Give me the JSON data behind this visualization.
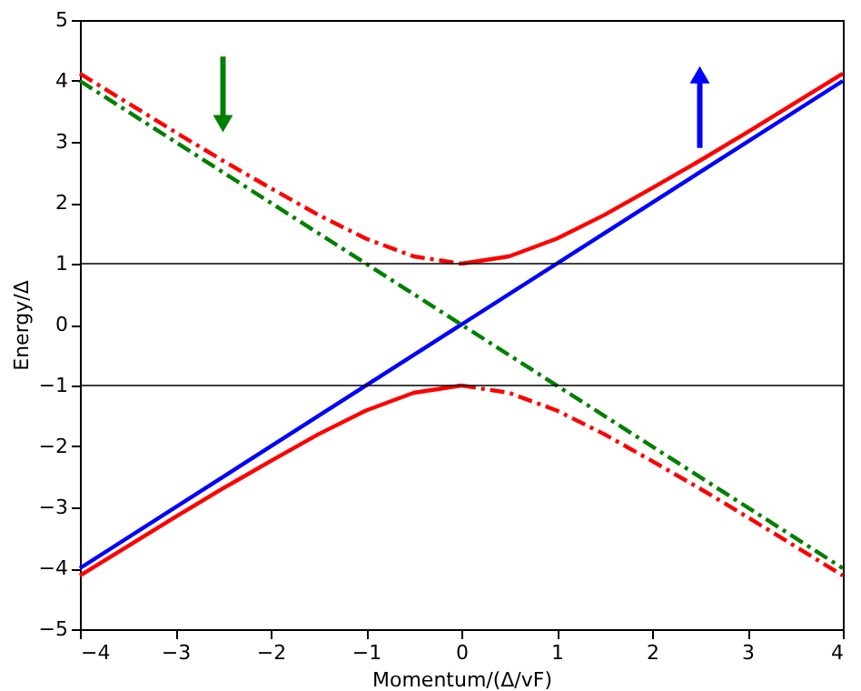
{
  "chart_data": {
    "type": "line",
    "xlabel": "Momentum/(Δ/vF)",
    "ylabel": "Energy/Δ",
    "xlim": [
      -4,
      4
    ],
    "ylim": [
      -5,
      5
    ],
    "xticks": [
      -4,
      -3,
      -2,
      -1,
      0,
      1,
      2,
      3,
      4
    ],
    "yticks": [
      -5,
      -4,
      -3,
      -2,
      -1,
      0,
      1,
      2,
      3,
      4,
      5
    ],
    "grid": false,
    "marker": "none",
    "ref_lines": [
      {
        "axis": "y",
        "value": 1,
        "color": "#000000"
      },
      {
        "axis": "y",
        "value": -1,
        "color": "#000000"
      }
    ],
    "series": [
      {
        "color": "#0000ff",
        "line_style": "solid",
        "x": [
          -4,
          4
        ],
        "values": [
          -4,
          4
        ]
      },
      {
        "color": "#008000",
        "line_style": "dashed",
        "x": [
          -4,
          4
        ],
        "values": [
          4,
          -4
        ]
      },
      {
        "color": "#ff0000",
        "line_style": "dashed",
        "x": [
          -4,
          -3.5,
          -3,
          -2.5,
          -2,
          -1.5,
          -1,
          -0.5,
          0
        ],
        "values": [
          4.12,
          3.64,
          3.16,
          2.69,
          2.24,
          1.8,
          1.41,
          1.12,
          1.0
        ]
      },
      {
        "color": "#ff0000",
        "line_style": "solid",
        "x": [
          0,
          0.5,
          1,
          1.5,
          2,
          2.5,
          3,
          3.5,
          4
        ],
        "values": [
          1.0,
          1.12,
          1.41,
          1.8,
          2.24,
          2.69,
          3.16,
          3.64,
          4.12
        ]
      },
      {
        "color": "#ff0000",
        "line_style": "solid",
        "x": [
          -4,
          -3.5,
          -3,
          -2.5,
          -2,
          -1.5,
          -1,
          -0.5,
          0
        ],
        "values": [
          -4.12,
          -3.64,
          -3.16,
          -2.69,
          -2.24,
          -1.8,
          -1.41,
          -1.12,
          -1.0
        ]
      },
      {
        "color": "#ff0000",
        "line_style": "dashed",
        "x": [
          0,
          0.5,
          1,
          1.5,
          2,
          2.5,
          3,
          3.5,
          4
        ],
        "values": [
          -1.0,
          -1.12,
          -1.41,
          -1.8,
          -2.24,
          -2.69,
          -3.16,
          -3.64,
          -4.12
        ]
      }
    ]
  }
}
